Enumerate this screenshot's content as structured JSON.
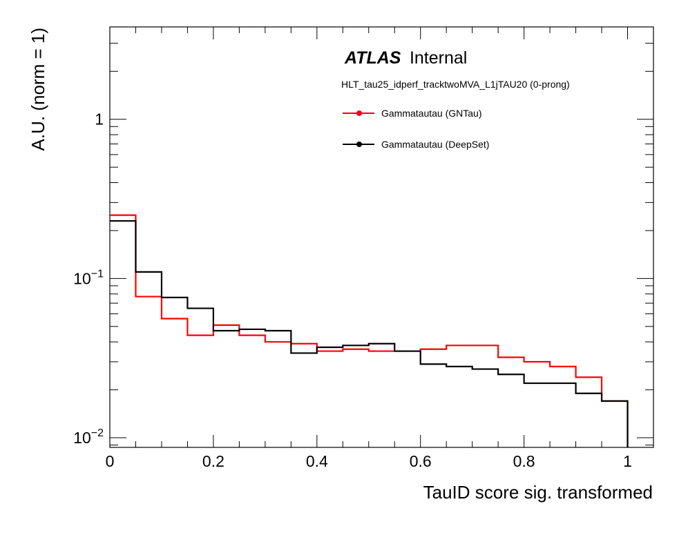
{
  "chart_data": {
    "type": "histogram",
    "xlabel": "TauID score sig. transformed",
    "ylabel": "A.U. (norm = 1)",
    "x_range": [
      0,
      1.05
    ],
    "y_range": [
      0.0087,
      3.8
    ],
    "y_scale": "log",
    "grid": false,
    "legend_position": "top-right",
    "x_ticks": [
      "0",
      "0.2",
      "0.4",
      "0.6",
      "0.8",
      "1"
    ],
    "y_ticks": [
      {
        "base": "10",
        "exp": "−2"
      },
      {
        "base": "10",
        "exp": "−1"
      },
      {
        "base": "1",
        "exp": ""
      }
    ],
    "atlas_label": "ATLAS",
    "atlas_status": "Internal",
    "selection_label": "HLT_tau25_idperf_tracktwoMVA_L1jTAU20 (0-prong)",
    "bin_edges": [
      0,
      0.05,
      0.1,
      0.15,
      0.2,
      0.25,
      0.3,
      0.35,
      0.4,
      0.45,
      0.5,
      0.55,
      0.6,
      0.65,
      0.7,
      0.75,
      0.8,
      0.85,
      0.9,
      0.95,
      1.0
    ],
    "series": [
      {
        "name": "Gammatautau (GNTau)",
        "color": "#ff0000",
        "values": [
          0.25,
          0.077,
          0.056,
          0.044,
          0.051,
          0.044,
          0.04,
          0.039,
          0.035,
          0.036,
          0.035,
          0.035,
          0.036,
          0.038,
          0.038,
          0.032,
          0.03,
          0.028,
          0.024,
          0.017
        ]
      },
      {
        "name": "Gammatautau (DeepSet)",
        "color": "#000000",
        "values": [
          0.23,
          0.11,
          0.076,
          0.065,
          0.047,
          0.048,
          0.047,
          0.034,
          0.037,
          0.038,
          0.039,
          0.035,
          0.029,
          0.028,
          0.027,
          0.025,
          0.022,
          0.022,
          0.019,
          0.017
        ]
      }
    ]
  }
}
